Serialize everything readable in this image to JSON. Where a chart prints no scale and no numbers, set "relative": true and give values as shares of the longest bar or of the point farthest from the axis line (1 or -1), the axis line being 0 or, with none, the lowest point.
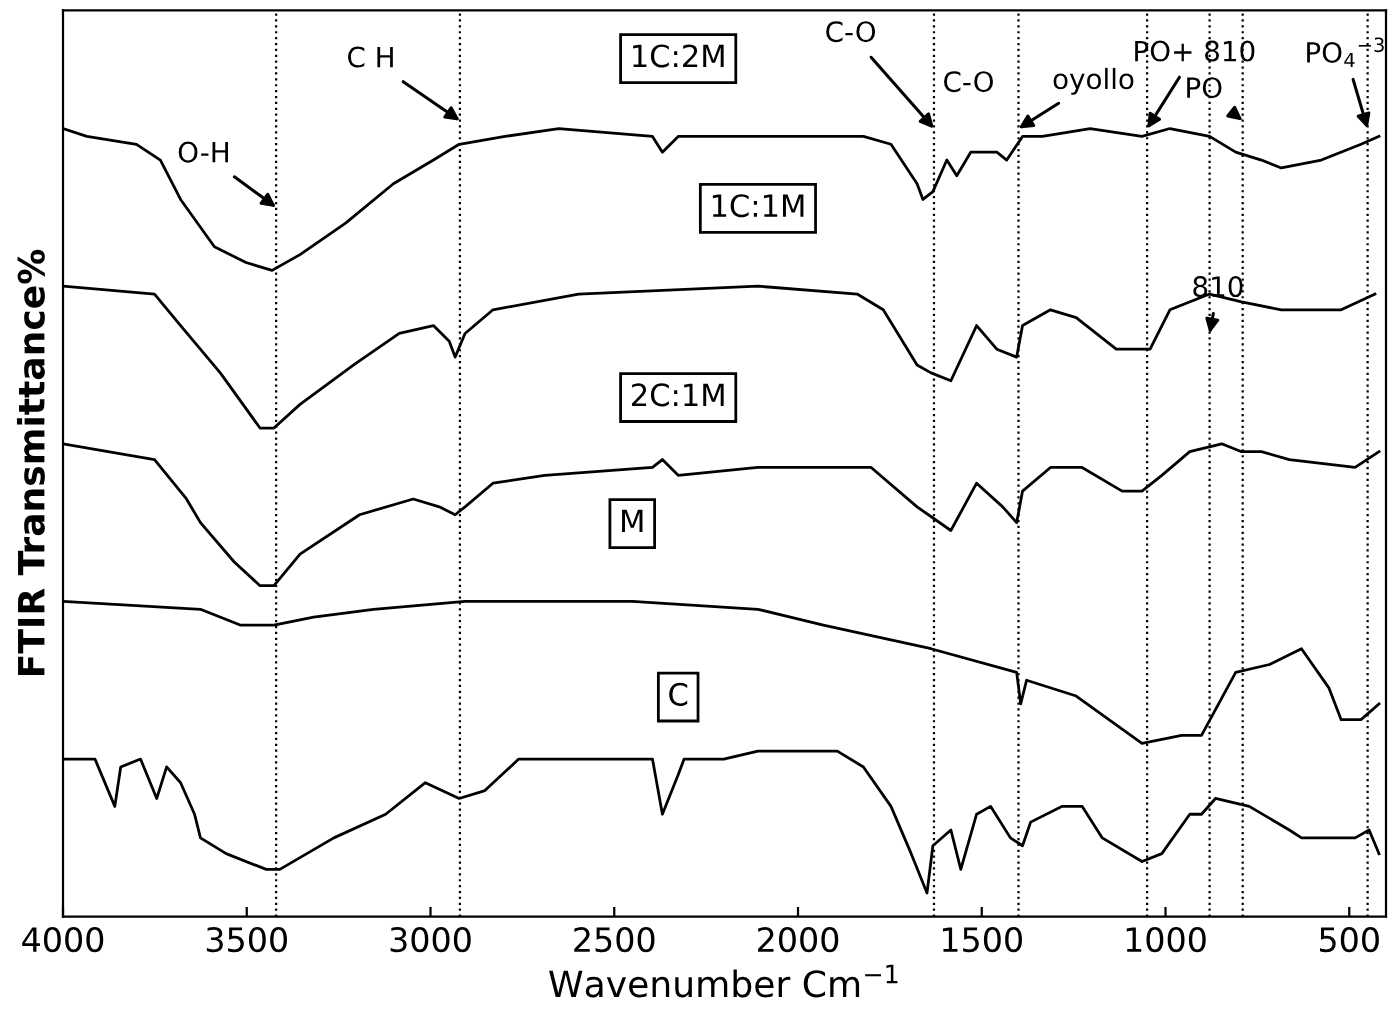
{
  "chart_data": {
    "type": "line",
    "xlabel": "Wavenumber Cm$^{−1}$",
    "ylabel": "FTIR Transmittance%",
    "relative": true,
    "xlim": [
      4000,
      400
    ],
    "xticks": [
      4000,
      3500,
      3000,
      2500,
      2000,
      1500,
      1000,
      500
    ],
    "tick_labels": "x",
    "grid": false,
    "marker": "none",
    "line_style": "solid",
    "series": [
      {
        "name": "1C:2M",
        "color": "#000000",
        "x": [
          4000,
          3935,
          3800,
          3735,
          3680,
          3588,
          3502,
          3431,
          3355,
          3231,
          3101,
          2992,
          2922,
          2797,
          2651,
          2396,
          2369,
          2326,
          2217,
          2109,
          1822,
          1747,
          1676,
          1660,
          1633,
          1595,
          1568,
          1530,
          1459,
          1432,
          1389,
          1335,
          1205,
          1064,
          988,
          880,
          809,
          739,
          685,
          576,
          468,
          419
        ],
        "values": [
          1.0,
          0.99,
          0.98,
          0.96,
          0.91,
          0.85,
          0.83,
          0.82,
          0.84,
          0.88,
          0.93,
          0.96,
          0.98,
          0.99,
          1.0,
          0.99,
          0.97,
          0.99,
          0.99,
          0.99,
          0.99,
          0.98,
          0.93,
          0.91,
          0.92,
          0.96,
          0.94,
          0.97,
          0.97,
          0.96,
          0.99,
          0.99,
          1.0,
          0.99,
          1.0,
          0.99,
          0.97,
          0.96,
          0.95,
          0.96,
          0.98,
          0.99
        ]
      },
      {
        "name": "1C:1M",
        "color": "#000000",
        "x": [
          4000,
          3751,
          3680,
          3572,
          3464,
          3426,
          3355,
          3209,
          3085,
          2992,
          2949,
          2933,
          2906,
          2830,
          2597,
          2109,
          1839,
          1768,
          1676,
          1638,
          1584,
          1514,
          1459,
          1405,
          1389,
          1313,
          1243,
          1134,
          1042,
          988,
          880,
          793,
          685,
          522,
          430
        ],
        "values": [
          0.8,
          0.79,
          0.75,
          0.69,
          0.62,
          0.62,
          0.65,
          0.7,
          0.74,
          0.75,
          0.73,
          0.71,
          0.74,
          0.77,
          0.79,
          0.8,
          0.79,
          0.77,
          0.7,
          0.69,
          0.68,
          0.75,
          0.72,
          0.71,
          0.75,
          0.77,
          0.76,
          0.72,
          0.72,
          0.77,
          0.79,
          0.78,
          0.77,
          0.77,
          0.79
        ]
      },
      {
        "name": "2C:1M",
        "color": "#000000",
        "x": [
          4000,
          3751,
          3664,
          3626,
          3534,
          3464,
          3426,
          3355,
          3193,
          3047,
          2976,
          2933,
          2906,
          2830,
          2689,
          2396,
          2369,
          2326,
          2109,
          1801,
          1676,
          1584,
          1514,
          1443,
          1405,
          1389,
          1313,
          1227,
          1118,
          1064,
          1010,
          934,
          847,
          793,
          739,
          663,
          484,
          419
        ],
        "values": [
          0.6,
          0.58,
          0.53,
          0.5,
          0.45,
          0.42,
          0.42,
          0.46,
          0.51,
          0.53,
          0.52,
          0.51,
          0.52,
          0.55,
          0.56,
          0.57,
          0.58,
          0.56,
          0.57,
          0.57,
          0.52,
          0.49,
          0.55,
          0.52,
          0.5,
          0.54,
          0.57,
          0.57,
          0.54,
          0.54,
          0.56,
          0.59,
          0.6,
          0.59,
          0.59,
          0.58,
          0.57,
          0.59
        ]
      },
      {
        "name": "M",
        "color": "#000000",
        "x": [
          4000,
          3626,
          3518,
          3426,
          3318,
          3155,
          2906,
          2451,
          2109,
          1931,
          1638,
          1405,
          1394,
          1378,
          1243,
          1064,
          956,
          902,
          809,
          717,
          630,
          555,
          522,
          468,
          419
        ],
        "values": [
          0.4,
          0.39,
          0.37,
          0.37,
          0.38,
          0.39,
          0.4,
          0.4,
          0.39,
          0.37,
          0.34,
          0.31,
          0.27,
          0.3,
          0.28,
          0.22,
          0.23,
          0.23,
          0.31,
          0.32,
          0.34,
          0.29,
          0.25,
          0.25,
          0.27
        ]
      },
      {
        "name": "C",
        "color": "#000000",
        "x": [
          4000,
          3913,
          3859,
          3843,
          3789,
          3745,
          3718,
          3680,
          3642,
          3626,
          3556,
          3447,
          3410,
          3263,
          3122,
          3014,
          2922,
          2852,
          2760,
          2396,
          2369,
          2326,
          2310,
          2217,
          2202,
          2109,
          1893,
          1822,
          1747,
          1692,
          1649,
          1633,
          1584,
          1557,
          1514,
          1476,
          1422,
          1389,
          1367,
          1281,
          1227,
          1172,
          1064,
          1010,
          934,
          902,
          864,
          772,
          663,
          630,
          484,
          446,
          419
        ],
        "values": [
          0.2,
          0.2,
          0.14,
          0.19,
          0.2,
          0.15,
          0.19,
          0.17,
          0.13,
          0.1,
          0.08,
          0.06,
          0.06,
          0.1,
          0.13,
          0.17,
          0.15,
          0.16,
          0.2,
          0.2,
          0.13,
          0.18,
          0.2,
          0.2,
          0.2,
          0.21,
          0.21,
          0.19,
          0.14,
          0.08,
          0.03,
          0.09,
          0.11,
          0.06,
          0.13,
          0.14,
          0.1,
          0.09,
          0.12,
          0.14,
          0.14,
          0.1,
          0.07,
          0.08,
          0.13,
          0.13,
          0.15,
          0.14,
          0.11,
          0.1,
          0.1,
          0.11,
          0.08
        ]
      }
    ],
    "ref_lines": [
      {
        "axis": "x",
        "value": 3420,
        "label": null,
        "line_style": "dotted"
      },
      {
        "axis": "x",
        "value": 2920,
        "label": null,
        "line_style": "dotted"
      },
      {
        "axis": "x",
        "value": 1630,
        "label": null,
        "line_style": "dotted"
      },
      {
        "axis": "x",
        "value": 1400,
        "label": null,
        "line_style": "dotted"
      },
      {
        "axis": "x",
        "value": 1050,
        "label": null,
        "line_style": "dotted"
      },
      {
        "axis": "x",
        "value": 880,
        "label": null,
        "line_style": "dotted"
      },
      {
        "axis": "x",
        "value": 790,
        "label": null,
        "line_style": "dotted"
      },
      {
        "axis": "x",
        "value": 450,
        "label": null,
        "line_style": "dotted"
      }
    ],
    "annotations": [
      {
        "text": "O-H",
        "x": 3420,
        "y": 0.9
      },
      {
        "text": "C H",
        "x": 2920,
        "y": 1.01
      },
      {
        "text": "C-O",
        "x": 1630,
        "y": 1.0
      },
      {
        "text": "C-O",
        "x": 1400,
        "y": 1.0
      },
      {
        "text": "oyollo",
        "x": 1400,
        "y": 1.0
      },
      {
        "text": "PO+ 810",
        "x": 1050,
        "y": 1.0
      },
      {
        "text": "PO$_{4}$$^{−3}$",
        "x": 450,
        "y": 1.0
      },
      {
        "text": "PO",
        "x": 790,
        "y": 1.01
      },
      {
        "text": "810",
        "x": 880,
        "y": 0.74
      }
    ]
  }
}
